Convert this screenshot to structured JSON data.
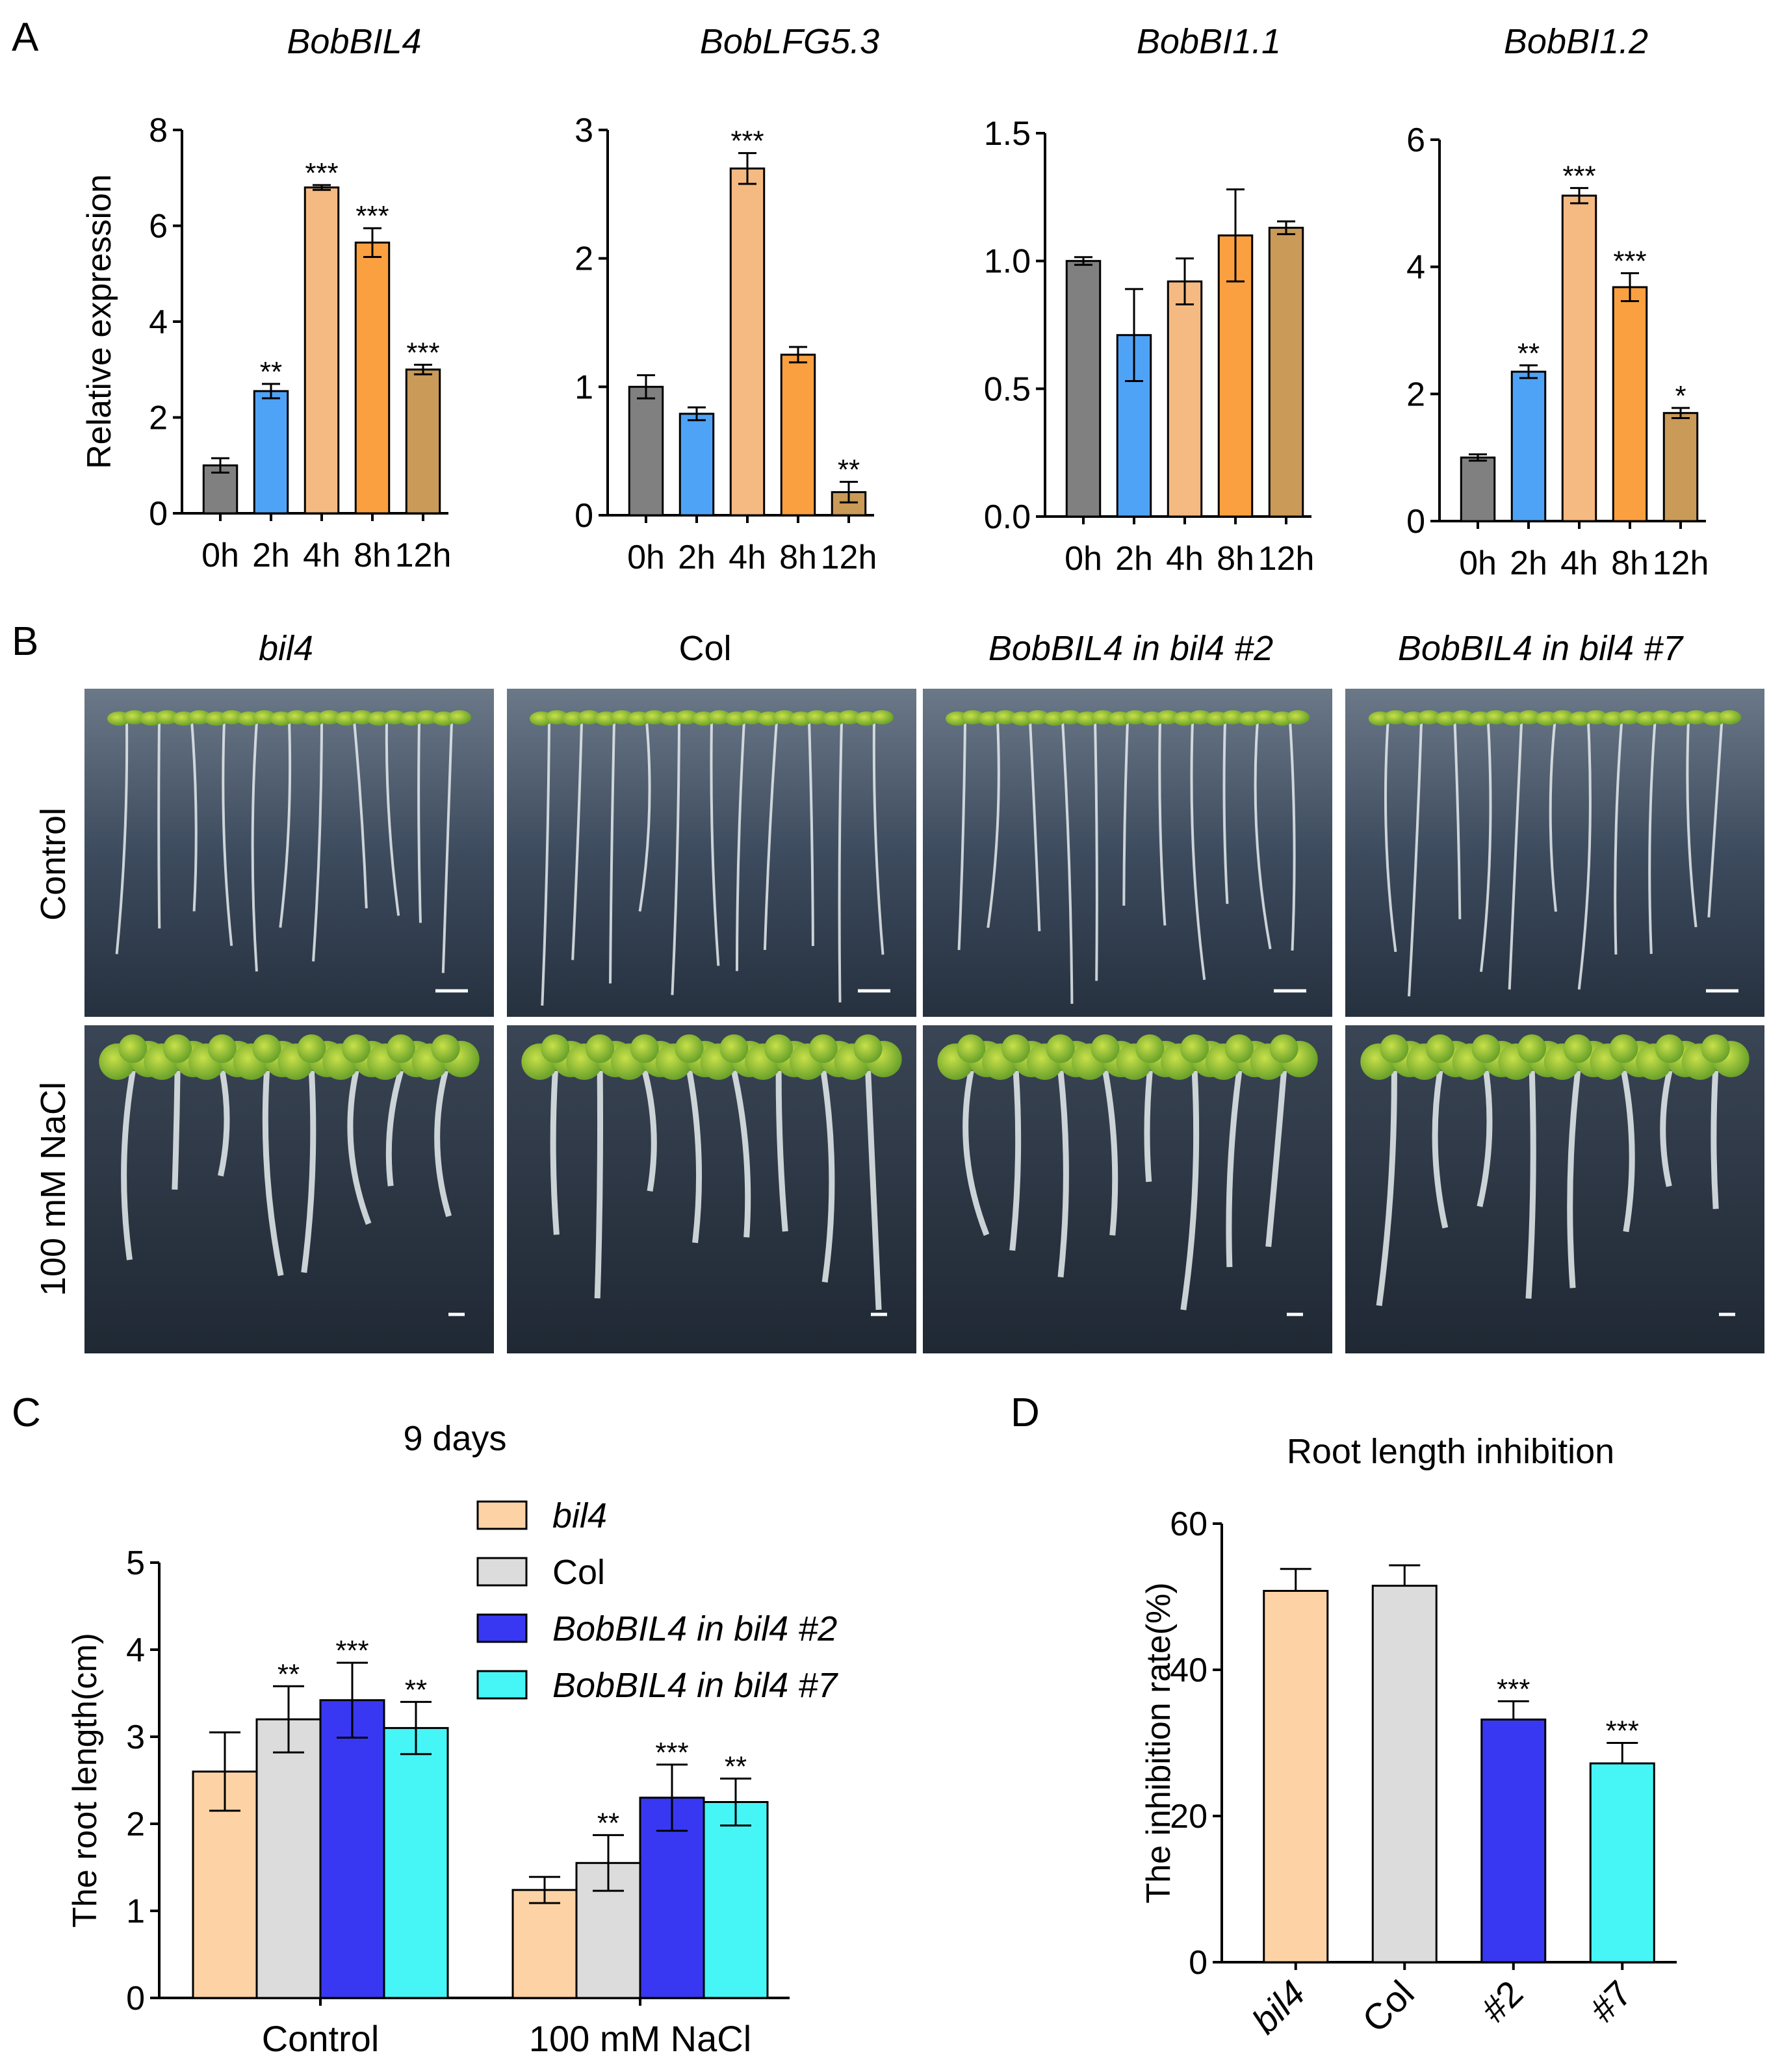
{
  "panel_labels": {
    "a": "A",
    "b": "B",
    "c": "C",
    "d": "D"
  },
  "colors": {
    "0h": "#808080",
    "2h": "#4fa3f7",
    "4h": "#f5b982",
    "8h": "#fba040",
    "12h": "#c99a58",
    "bil4": "#fdd3a6",
    "Col": "#dcdcdc",
    "line2": "#3838f2",
    "line7": "#46f5f5"
  },
  "panel_b": {
    "columns": [
      "bil4",
      "Col",
      "BobBIL4 in bil4 #2",
      "BobBIL4 in bil4 #7"
    ],
    "rows": [
      "Control",
      "100 mM NaCl"
    ]
  },
  "chart_data": [
    {
      "type": "bar",
      "title": "BobBIL4",
      "ylabel": "Relative expression",
      "categories": [
        "0h",
        "2h",
        "4h",
        "8h",
        "12h"
      ],
      "values": [
        1.0,
        2.55,
        6.8,
        5.65,
        3.0
      ],
      "errors": [
        0.15,
        0.15,
        0.05,
        0.3,
        0.1
      ],
      "significance": [
        "",
        "**",
        "***",
        "***",
        "***"
      ],
      "ylim": [
        0,
        8
      ],
      "yticks": [
        "0",
        "2",
        "4",
        "6",
        "8"
      ]
    },
    {
      "type": "bar",
      "title": "BobLFG5.3",
      "ylabel": "",
      "categories": [
        "0h",
        "2h",
        "4h",
        "8h",
        "12h"
      ],
      "values": [
        1.0,
        0.79,
        2.7,
        1.25,
        0.18
      ],
      "errors": [
        0.09,
        0.05,
        0.12,
        0.06,
        0.08
      ],
      "significance": [
        "",
        "",
        "***",
        "",
        "**"
      ],
      "ylim": [
        0,
        3
      ],
      "yticks": [
        "0",
        "1",
        "2",
        "3"
      ]
    },
    {
      "type": "bar",
      "title": "BobBI1.1",
      "ylabel": "",
      "categories": [
        "0h",
        "2h",
        "4h",
        "8h",
        "12h"
      ],
      "values": [
        1.0,
        0.71,
        0.92,
        1.1,
        1.13
      ],
      "errors": [
        0.015,
        0.18,
        0.09,
        0.18,
        0.025
      ],
      "significance": [
        "",
        "",
        "",
        "",
        ""
      ],
      "ylim": [
        0,
        1.5
      ],
      "yticks": [
        "0.0",
        "0.5",
        "1.0",
        "1.5"
      ]
    },
    {
      "type": "bar",
      "title": "BobBI1.2",
      "ylabel": "",
      "categories": [
        "0h",
        "2h",
        "4h",
        "8h",
        "12h"
      ],
      "values": [
        1.0,
        2.35,
        5.12,
        3.68,
        1.7
      ],
      "errors": [
        0.05,
        0.1,
        0.12,
        0.22,
        0.08
      ],
      "significance": [
        "",
        "**",
        "***",
        "***",
        "*"
      ],
      "ylim": [
        0,
        6
      ],
      "yticks": [
        "0",
        "2",
        "4",
        "6"
      ]
    },
    {
      "type": "bar",
      "title": "9 days",
      "ylabel": "The root length(cm)",
      "categories": [
        "Control",
        "100 mM NaCl"
      ],
      "series": [
        {
          "name": "bil4",
          "values": [
            2.6,
            1.24
          ],
          "errors": [
            0.45,
            0.15
          ],
          "significance": [
            "",
            ""
          ]
        },
        {
          "name": "Col",
          "values": [
            3.2,
            1.55
          ],
          "errors": [
            0.38,
            0.32
          ],
          "significance": [
            "**",
            "**"
          ]
        },
        {
          "name": "BobBIL4 in bil4 #2",
          "values": [
            3.42,
            2.3
          ],
          "errors": [
            0.43,
            0.38
          ],
          "significance": [
            "***",
            "***"
          ]
        },
        {
          "name": "BobBIL4 in bil4 #7",
          "values": [
            3.1,
            2.25
          ],
          "errors": [
            0.3,
            0.27
          ],
          "significance": [
            "**",
            "**"
          ]
        }
      ],
      "ylim": [
        0,
        5
      ],
      "yticks": [
        "0",
        "1",
        "2",
        "3",
        "4",
        "5"
      ],
      "legend": "top-right"
    },
    {
      "type": "bar",
      "title": "Root length inhibition",
      "ylabel": "The inhibition rate(%)",
      "categories": [
        "bil4",
        "Col",
        "#2",
        "#7"
      ],
      "values": [
        50.8,
        51.5,
        33.2,
        27.2
      ],
      "errors": [
        3.0,
        2.8,
        2.5,
        2.8
      ],
      "significance": [
        "",
        "",
        "***",
        "***"
      ],
      "ylim": [
        0,
        60
      ],
      "yticks": [
        "0",
        "20",
        "40",
        "60"
      ]
    }
  ]
}
